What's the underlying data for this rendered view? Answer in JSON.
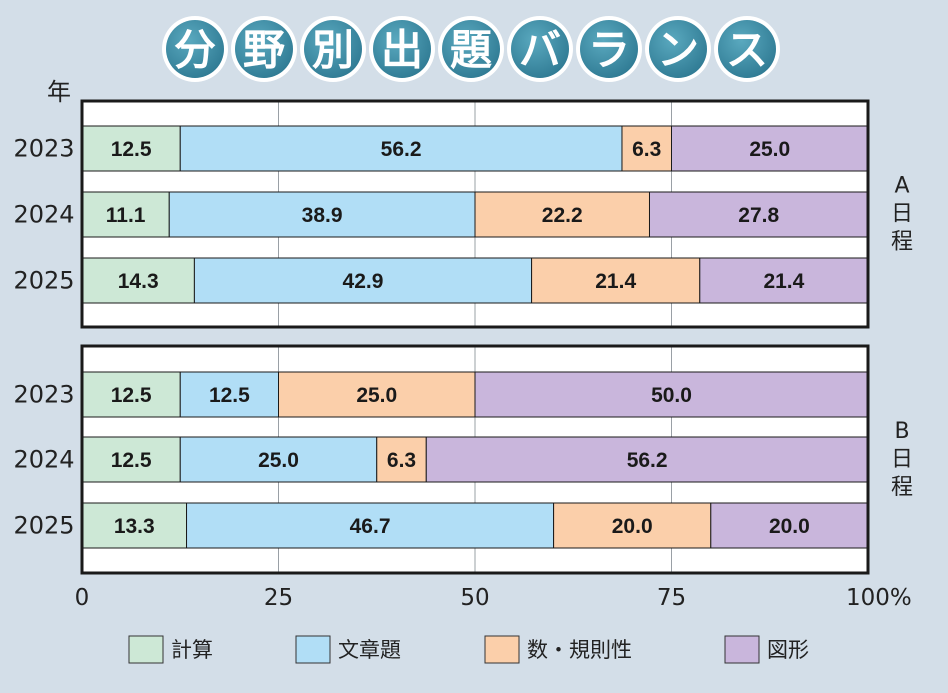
{
  "title_chars": [
    "分",
    "野",
    "別",
    "出",
    "題",
    "バ",
    "ラ",
    "ン",
    "ス"
  ],
  "chart_data": {
    "type": "bar",
    "orientation": "horizontal",
    "stacked": true,
    "title": "分野別出題バランス",
    "y_axis_label": "年",
    "x_ticks": [
      "0",
      "25",
      "50",
      "75",
      "100%"
    ],
    "xlim": [
      0,
      100
    ],
    "series": [
      {
        "name": "計算",
        "color": "#cde8d6"
      },
      {
        "name": "文章題",
        "color": "#b1def6"
      },
      {
        "name": "数・規則性",
        "color": "#fbcfaa"
      },
      {
        "name": "図形",
        "color": "#c9b6dc"
      }
    ],
    "panels": [
      {
        "name": "A日程",
        "label_chars": [
          "A",
          "日",
          "程"
        ],
        "rows": [
          {
            "year": "2023",
            "values": [
              12.5,
              56.2,
              6.3,
              25.0
            ],
            "labels": [
              "12.5",
              "56.2",
              "6.3",
              "25.0"
            ]
          },
          {
            "year": "2024",
            "values": [
              11.1,
              38.9,
              22.2,
              27.8
            ],
            "labels": [
              "11.1",
              "38.9",
              "22.2",
              "27.8"
            ]
          },
          {
            "year": "2025",
            "values": [
              14.3,
              42.9,
              21.4,
              21.4
            ],
            "labels": [
              "14.3",
              "42.9",
              "21.4",
              "21.4"
            ]
          }
        ]
      },
      {
        "name": "B日程",
        "label_chars": [
          "B",
          "日",
          "程"
        ],
        "rows": [
          {
            "year": "2023",
            "values": [
              12.5,
              12.5,
              25.0,
              50.0
            ],
            "labels": [
              "12.5",
              "12.5",
              "25.0",
              "50.0"
            ]
          },
          {
            "year": "2024",
            "values": [
              12.5,
              25.0,
              6.3,
              56.2
            ],
            "labels": [
              "12.5",
              "25.0",
              "6.3",
              "56.2"
            ]
          },
          {
            "year": "2025",
            "values": [
              13.3,
              46.7,
              20.0,
              20.0
            ],
            "labels": [
              "13.3",
              "46.7",
              "20.0",
              "20.0"
            ]
          }
        ]
      }
    ]
  }
}
